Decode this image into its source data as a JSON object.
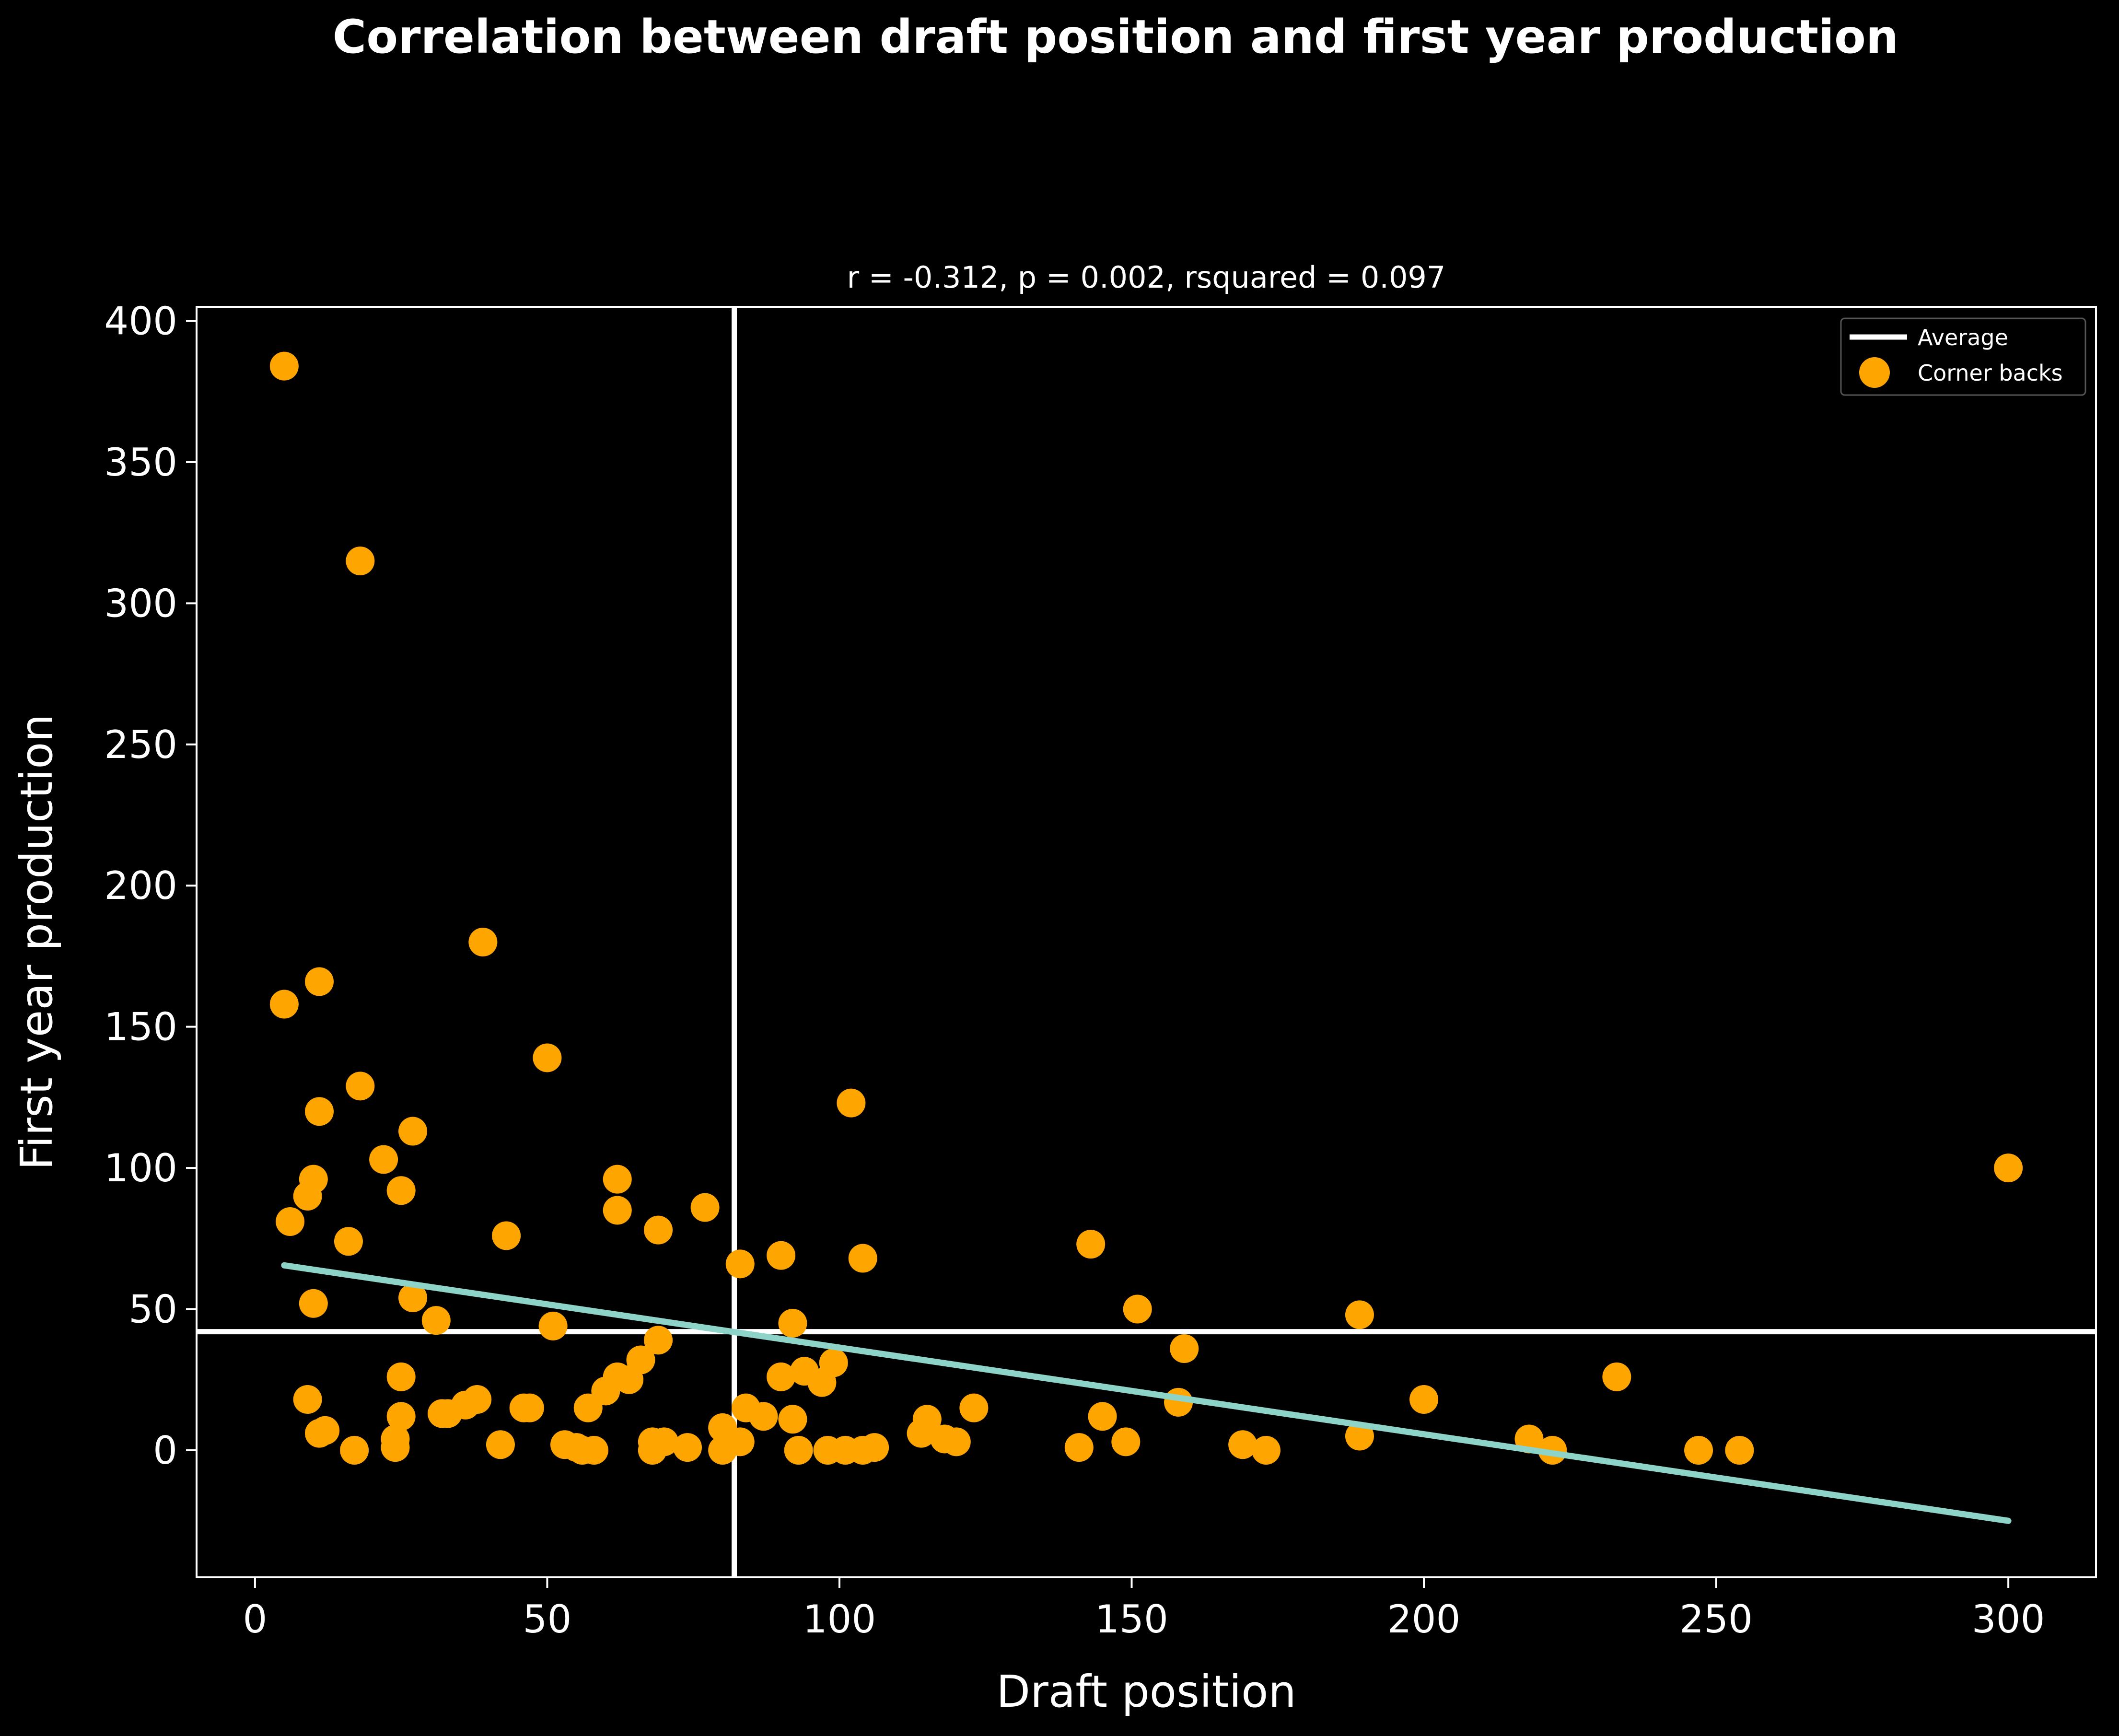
{
  "chart_data": {
    "type": "scatter",
    "title": "Correlation between draft position and first year production",
    "subtitle": "r = -0.312, p = 0.002, rsquared = 0.097",
    "xlabel": "Draft position",
    "ylabel": "First year production",
    "xlim": [
      -10,
      315
    ],
    "ylim": [
      -45,
      405
    ],
    "xticks": [
      0,
      50,
      100,
      150,
      200,
      250,
      300
    ],
    "yticks": [
      0,
      50,
      100,
      150,
      200,
      250,
      300,
      350,
      400
    ],
    "grid": false,
    "legend_position": "top-right",
    "colors": {
      "background": "#000000",
      "points": "#ffa500",
      "average": "#ffffff",
      "regression": "#8dd3c7"
    },
    "legend": [
      {
        "label": "Average",
        "kind": "line",
        "color": "#ffffff"
      },
      {
        "label": "Corner backs",
        "kind": "marker",
        "color": "#ffa500"
      }
    ],
    "average": {
      "x": 82,
      "y": 42
    },
    "regression": {
      "x": [
        5,
        300
      ],
      "y": [
        65.5,
        -25
      ]
    },
    "series": [
      {
        "name": "Corner backs",
        "points": [
          [
            5,
            384
          ],
          [
            18,
            315
          ],
          [
            5,
            158
          ],
          [
            11,
            166
          ],
          [
            39,
            180
          ],
          [
            18,
            129
          ],
          [
            11,
            120
          ],
          [
            50,
            139
          ],
          [
            27,
            113
          ],
          [
            22,
            103
          ],
          [
            10,
            96
          ],
          [
            9,
            90
          ],
          [
            25,
            92
          ],
          [
            6,
            81
          ],
          [
            16,
            74
          ],
          [
            43,
            76
          ],
          [
            62,
            96
          ],
          [
            62,
            85
          ],
          [
            69,
            78
          ],
          [
            77,
            86
          ],
          [
            102,
            123
          ],
          [
            27,
            54
          ],
          [
            10,
            52
          ],
          [
            31,
            46
          ],
          [
            51,
            44
          ],
          [
            83,
            66
          ],
          [
            90,
            69
          ],
          [
            104,
            68
          ],
          [
            92,
            45
          ],
          [
            143,
            73
          ],
          [
            151,
            50
          ],
          [
            189,
            48
          ],
          [
            159,
            36
          ],
          [
            9,
            18
          ],
          [
            25,
            26
          ],
          [
            25,
            12
          ],
          [
            12,
            7
          ],
          [
            11,
            6
          ],
          [
            17,
            0
          ],
          [
            24,
            4
          ],
          [
            24,
            1
          ],
          [
            32,
            13
          ],
          [
            33,
            13
          ],
          [
            36,
            16
          ],
          [
            38,
            18
          ],
          [
            42,
            2
          ],
          [
            46,
            15
          ],
          [
            47,
            15
          ],
          [
            53,
            2
          ],
          [
            55,
            1
          ],
          [
            56,
            0
          ],
          [
            57,
            15
          ],
          [
            58,
            0
          ],
          [
            60,
            21
          ],
          [
            62,
            26
          ],
          [
            64,
            25
          ],
          [
            66,
            32
          ],
          [
            68,
            3
          ],
          [
            68,
            0
          ],
          [
            69,
            39
          ],
          [
            70,
            3
          ],
          [
            74,
            1
          ],
          [
            80,
            8
          ],
          [
            80,
            0
          ],
          [
            83,
            3
          ],
          [
            84,
            15
          ],
          [
            87,
            12
          ],
          [
            90,
            26
          ],
          [
            92,
            11
          ],
          [
            93,
            0
          ],
          [
            94,
            28
          ],
          [
            97,
            24
          ],
          [
            98,
            0
          ],
          [
            99,
            31
          ],
          [
            101,
            0
          ],
          [
            104,
            0
          ],
          [
            106,
            1
          ],
          [
            114,
            6
          ],
          [
            115,
            11
          ],
          [
            118,
            4
          ],
          [
            120,
            3
          ],
          [
            123,
            15
          ],
          [
            141,
            1
          ],
          [
            145,
            12
          ],
          [
            149,
            3
          ],
          [
            158,
            17
          ],
          [
            169,
            2
          ],
          [
            173,
            0
          ],
          [
            189,
            5
          ],
          [
            200,
            18
          ],
          [
            218,
            4
          ],
          [
            222,
            0
          ],
          [
            233,
            26
          ],
          [
            247,
            0
          ],
          [
            254,
            0
          ],
          [
            300,
            100
          ]
        ]
      }
    ]
  }
}
